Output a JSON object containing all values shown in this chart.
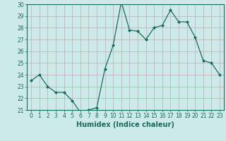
{
  "x": [
    0,
    1,
    2,
    3,
    4,
    5,
    6,
    7,
    8,
    9,
    10,
    11,
    12,
    13,
    14,
    15,
    16,
    17,
    18,
    19,
    20,
    21,
    22,
    23
  ],
  "y": [
    23.5,
    24.0,
    23.0,
    22.5,
    22.5,
    21.8,
    20.8,
    21.0,
    21.2,
    24.5,
    26.5,
    30.2,
    27.8,
    27.7,
    27.0,
    28.0,
    28.2,
    29.5,
    28.5,
    28.5,
    27.2,
    25.2,
    25.0,
    24.0
  ],
  "line_color": "#1a6b5a",
  "marker": "D",
  "marker_size": 2,
  "bg_color": "#cdeaea",
  "grid_color": "#c8a8a8",
  "xlabel": "Humidex (Indice chaleur)",
  "ylim": [
    21,
    30
  ],
  "xlim_min": -0.5,
  "xlim_max": 23.5,
  "yticks": [
    21,
    22,
    23,
    24,
    25,
    26,
    27,
    28,
    29,
    30
  ],
  "xticks": [
    0,
    1,
    2,
    3,
    4,
    5,
    6,
    7,
    8,
    9,
    10,
    11,
    12,
    13,
    14,
    15,
    16,
    17,
    18,
    19,
    20,
    21,
    22,
    23
  ],
  "label_fontsize": 7,
  "tick_fontsize": 5.5
}
